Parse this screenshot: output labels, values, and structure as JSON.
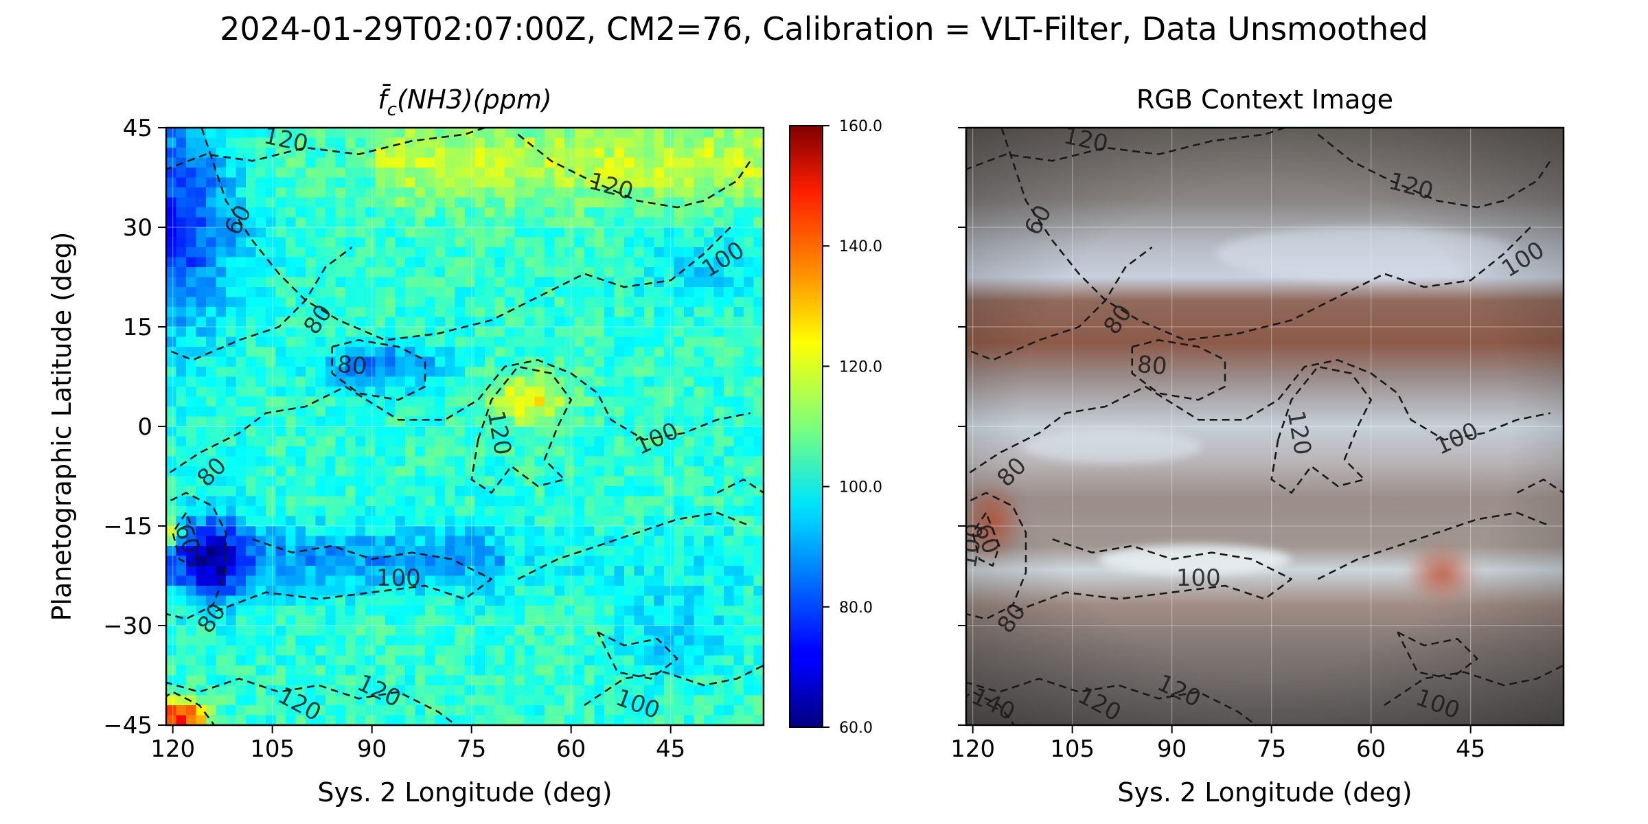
{
  "suptitle": "2024-01-29T02:07:00Z, CM2=76, Calibration = VLT-Filter, Data Unsmoothed",
  "chart_data": [
    {
      "type": "heatmap",
      "title_main": "f̄",
      "title_sub": "c",
      "title_rest": "(NH3)(ppm)",
      "xlabel": "Sys. 2 Longitude (deg)",
      "ylabel": "Planetographic Latitude (deg)",
      "xlim": [
        121,
        31
      ],
      "ylim": [
        -45,
        45
      ],
      "xticks": [
        120,
        105,
        90,
        75,
        60,
        45
      ],
      "yticks": [
        45,
        30,
        15,
        0,
        -15,
        -30,
        -45
      ],
      "ytick_labels": [
        "45",
        "30",
        "15",
        "0",
        "−15",
        "−30",
        "−45"
      ],
      "grid": true,
      "colormap": "jet",
      "clim": [
        60,
        160
      ],
      "colorbar_ticks": [
        "60.0",
        "80.0",
        "100.0",
        "120.0",
        "140.0",
        "160.0"
      ],
      "contour_levels": [
        60,
        80,
        100,
        120,
        140
      ],
      "contour_labels": [
        {
          "text": "120",
          "lon": 103,
          "lat": 43,
          "rot": 12
        },
        {
          "text": "120",
          "lon": 54,
          "lat": 36,
          "rot": 15
        },
        {
          "text": "100",
          "lon": 37,
          "lat": 25,
          "rot": -32
        },
        {
          "text": "60",
          "lon": 110,
          "lat": 31,
          "rot": -62
        },
        {
          "text": "80",
          "lon": 98,
          "lat": 16,
          "rot": -55
        },
        {
          "text": "80",
          "lon": 93,
          "lat": 9,
          "rot": 5
        },
        {
          "text": "120",
          "lon": 71,
          "lat": -1,
          "rot": 80
        },
        {
          "text": "100",
          "lon": 47,
          "lat": -2,
          "rot": -25
        },
        {
          "text": "80",
          "lon": 114,
          "lat": -7,
          "rot": -45
        },
        {
          "text": "60",
          "lon": 118,
          "lat": -17,
          "rot": 70
        },
        {
          "text": "100",
          "lon": 86,
          "lat": -23,
          "rot": 0
        },
        {
          "text": "80",
          "lon": 114,
          "lat": -29,
          "rot": -55
        },
        {
          "text": "120",
          "lon": 101,
          "lat": -42,
          "rot": 28
        },
        {
          "text": "120",
          "lon": 89,
          "lat": -40,
          "rot": 25
        },
        {
          "text": "100",
          "lon": 50,
          "lat": -42,
          "rot": 20
        }
      ]
    },
    {
      "type": "image",
      "title": "RGB Context Image",
      "xlabel": "Sys. 2 Longitude (deg)",
      "xlim": [
        121,
        31
      ],
      "ylim": [
        -45,
        45
      ],
      "xticks": [
        120,
        105,
        90,
        75,
        60,
        45
      ],
      "grid": true,
      "contour_labels": [
        {
          "text": "120",
          "lon": 103,
          "lat": 43,
          "rot": 12
        },
        {
          "text": "120",
          "lon": 54,
          "lat": 36,
          "rot": 15
        },
        {
          "text": "100",
          "lon": 37,
          "lat": 25,
          "rot": -32
        },
        {
          "text": "60",
          "lon": 110,
          "lat": 31,
          "rot": -62
        },
        {
          "text": "80",
          "lon": 98,
          "lat": 16,
          "rot": -55
        },
        {
          "text": "80",
          "lon": 93,
          "lat": 9,
          "rot": 5
        },
        {
          "text": "120",
          "lon": 71,
          "lat": -1,
          "rot": 80
        },
        {
          "text": "100",
          "lon": 47,
          "lat": -2,
          "rot": -25
        },
        {
          "text": "80",
          "lon": 114,
          "lat": -7,
          "rot": -45
        },
        {
          "text": "60",
          "lon": 118,
          "lat": -17,
          "rot": 70
        },
        {
          "text": "100",
          "lon": 86,
          "lat": -23,
          "rot": 0
        },
        {
          "text": "80",
          "lon": 114,
          "lat": -29,
          "rot": -55
        },
        {
          "text": "120",
          "lon": 101,
          "lat": -42,
          "rot": 28
        },
        {
          "text": "120",
          "lon": 89,
          "lat": -40,
          "rot": 25
        },
        {
          "text": "100",
          "lon": 50,
          "lat": -42,
          "rot": 20
        },
        {
          "text": "140",
          "lon": 117,
          "lat": -42,
          "rot": 25
        },
        {
          "text": "100",
          "lon": 120,
          "lat": -18,
          "rot": -80
        }
      ]
    }
  ]
}
